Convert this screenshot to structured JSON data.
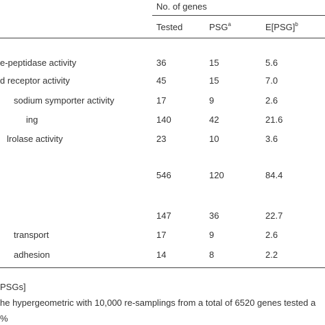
{
  "table": {
    "group_header": "No. of genes",
    "columns": [
      {
        "text": "Tested"
      },
      {
        "text": "PSG",
        "sup": "a"
      },
      {
        "text": "E[PSG]",
        "sup": "b"
      }
    ],
    "rows": [
      {
        "label": "e-peptidase activity",
        "cells": [
          "36",
          "15",
          "5.6"
        ]
      },
      {
        "label": "d receptor activity",
        "cells": [
          "45",
          "15",
          "7.0"
        ]
      },
      {
        "label": "sodium symporter activity",
        "cells": [
          "17",
          "9",
          "2.6"
        ]
      },
      {
        "label": "ing",
        "cells": [
          "140",
          "42",
          "21.6"
        ]
      },
      {
        "label": "lrolase activity",
        "cells": [
          "23",
          "10",
          "3.6"
        ]
      },
      {
        "cells": [
          "546",
          "120",
          "84.4"
        ]
      },
      {
        "cells": [
          "147",
          "36",
          "22.7"
        ]
      },
      {
        "label": "transport",
        "cells": [
          "17",
          "9",
          "2.6"
        ]
      },
      {
        "label": "adhesion",
        "cells": [
          "14",
          "8",
          "2.2"
        ]
      }
    ]
  },
  "footnotes": [
    "PSGs]",
    "he hypergeometric with 10,000 re-samplings from a total of 6520 genes tested a",
    "%"
  ]
}
